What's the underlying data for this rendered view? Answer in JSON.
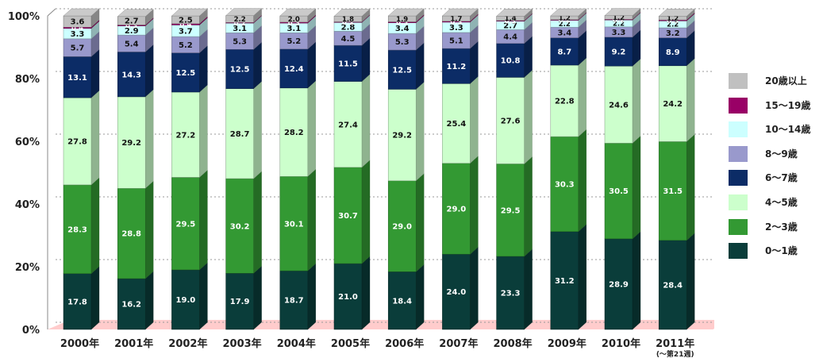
{
  "chart_data": {
    "type": "bar",
    "stacked": true,
    "percent": true,
    "categories": [
      "2000年",
      "2001年",
      "2002年",
      "2003年",
      "2004年",
      "2005年",
      "2006年",
      "2007年",
      "2008年",
      "2009年",
      "2010年",
      "2011年"
    ],
    "category_subtitles": [
      "",
      "",
      "",
      "",
      "",
      "",
      "",
      "",
      "",
      "",
      "",
      "(〜第21週)"
    ],
    "ylim": [
      0,
      100
    ],
    "y_ticks": [
      "0%",
      "20%",
      "40%",
      "60%",
      "80%",
      "100%"
    ],
    "grid": true,
    "legend_position": "right",
    "series": [
      {
        "name": "0〜1歳",
        "color": "#0a3d3a",
        "values": [
          17.8,
          16.2,
          19.0,
          17.9,
          18.7,
          21.0,
          18.4,
          24.0,
          23.3,
          31.2,
          28.9,
          28.4
        ]
      },
      {
        "name": "2〜3歳",
        "color": "#339933",
        "values": [
          28.3,
          28.8,
          29.5,
          30.2,
          30.1,
          30.7,
          29.0,
          29.0,
          29.5,
          30.3,
          30.5,
          31.5
        ]
      },
      {
        "name": "4〜5歳",
        "color": "#ccffcc",
        "values": [
          27.8,
          29.2,
          27.2,
          28.7,
          28.2,
          27.4,
          29.2,
          25.4,
          27.6,
          22.8,
          24.6,
          24.2
        ]
      },
      {
        "name": "6〜7歳",
        "color": "#0c2c66",
        "values": [
          13.1,
          14.3,
          12.5,
          12.5,
          12.4,
          11.5,
          12.5,
          11.2,
          10.8,
          8.7,
          9.2,
          8.9
        ]
      },
      {
        "name": "8〜9歳",
        "color": "#9999cc",
        "values": [
          5.7,
          5.4,
          5.2,
          5.3,
          5.2,
          4.5,
          5.3,
          5.1,
          4.4,
          3.4,
          3.3,
          3.2
        ]
      },
      {
        "name": "10〜14歳",
        "color": "#ccffff",
        "values": [
          3.3,
          2.9,
          3.7,
          3.1,
          3.1,
          2.8,
          3.4,
          3.3,
          2.7,
          2.2,
          2.2,
          2.2
        ]
      },
      {
        "name": "15〜19歳",
        "color": "#990066",
        "values": [
          0.4,
          0.3,
          0.4,
          0.2,
          0.3,
          0.2,
          0.3,
          0.3,
          0.2,
          0.2,
          0.2,
          0.3
        ]
      },
      {
        "name": "20歳以上",
        "color": "#c0c0c0",
        "values": [
          3.6,
          2.7,
          2.5,
          2.2,
          2.0,
          1.8,
          1.9,
          1.7,
          1.4,
          1.2,
          1.2,
          1.2
        ]
      }
    ],
    "legend_order": [
      "20歳以上",
      "15〜19歳",
      "10〜14歳",
      "8〜9歳",
      "6〜7歳",
      "4〜5歳",
      "2〜3歳",
      "0〜1歳"
    ]
  }
}
